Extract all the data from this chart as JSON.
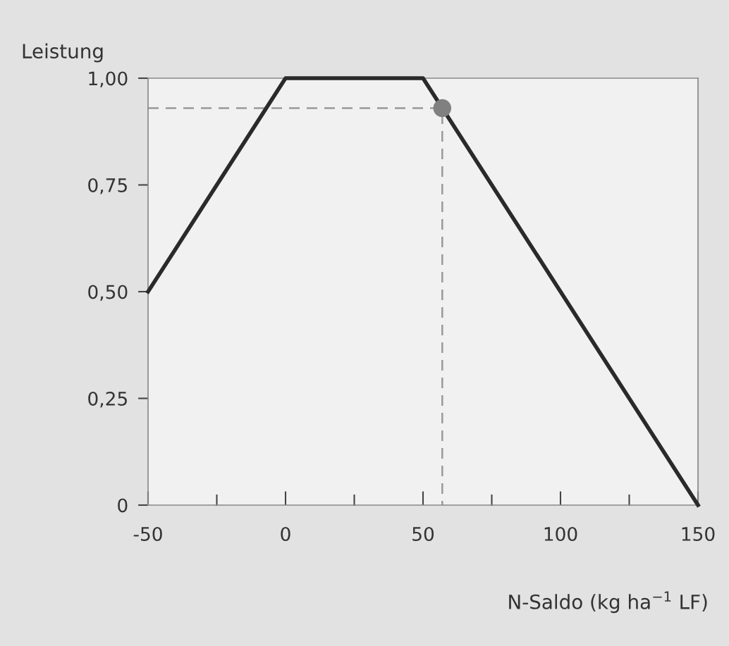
{
  "chart_data": {
    "type": "line",
    "ylabel": "Leistung",
    "xlabel": "N-Saldo (kg ha$^{−1}$ LF)",
    "xlim": [
      -50,
      150
    ],
    "ylim": [
      0,
      1
    ],
    "xticks": [
      {
        "value": -50,
        "label": "-50"
      },
      {
        "value": -25,
        "label": null
      },
      0,
      {
        "value": 25,
        "label": null
      },
      50,
      {
        "value": 75,
        "label": null
      },
      100,
      {
        "value": 125,
        "label": null
      },
      150
    ],
    "yticks": [
      0,
      {
        "value": 0.25,
        "label": "0,25"
      },
      {
        "value": 0.5,
        "label": "0,50"
      },
      {
        "value": 0.75,
        "label": "0,75"
      },
      {
        "value": 1,
        "label": "1,00"
      }
    ],
    "grid": false,
    "legend": false,
    "series": [
      {
        "color": "#2a2a2a",
        "x": [
          -50,
          0,
          50,
          150
        ],
        "values": [
          0.5,
          1,
          1,
          0
        ]
      },
      {
        "type": "line",
        "color": "#999999",
        "line_style": "dashed",
        "x": [
          -50,
          57,
          57
        ],
        "values": [
          0.93,
          0.93,
          0
        ]
      },
      {
        "type": "scatter",
        "color": "#808080",
        "marker": "circle",
        "x": [
          57
        ],
        "values": [
          0.93
        ]
      }
    ]
  }
}
